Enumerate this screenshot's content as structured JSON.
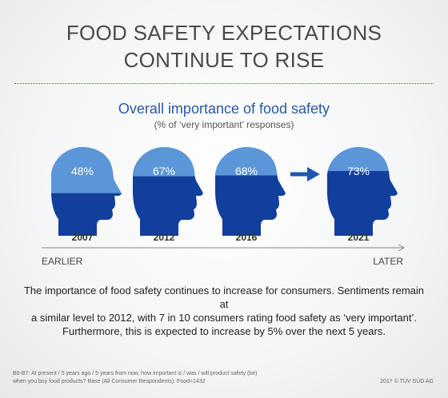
{
  "header": {
    "title_line1": "FOOD SAFETY EXPECTATIONS",
    "title_line2": "CONTINUE TO RISE"
  },
  "chart_data": {
    "type": "bar",
    "title": "Overall importance of food safety",
    "subtitle": "(% of ‘very important’ responses)",
    "categories": [
      "2007",
      "2012",
      "2016",
      "2021"
    ],
    "values": [
      48,
      67,
      68,
      73
    ],
    "value_labels": [
      "48%",
      "67%",
      "68%",
      "73%"
    ],
    "ylim": [
      0,
      100
    ],
    "axis_start_label": "EARLIER",
    "axis_end_label": "LATER",
    "colors": {
      "light": "#5b96d8",
      "dark": "#123f9e",
      "axis": "#888888",
      "arrow": "#1f56b0"
    }
  },
  "description": {
    "line1": "The importance of food safety continues to increase for consumers. Sentiments remain at",
    "line2": "a similar level to 2012, with 7 in 10 consumers rating food safety as ‘very important’.",
    "line3": "Furthermore, this is expected to increase by 5% over the next 5 years."
  },
  "footer": {
    "footnote_line1": "B6-B7: At present / 5 years ago / 5 years from now, how important is / was / will product safety (be)",
    "footnote_line2": "when you buy food products? Base (All Consumer Respondents): Food=1432",
    "copyright": "2017 © TÜV SÜD AG"
  }
}
